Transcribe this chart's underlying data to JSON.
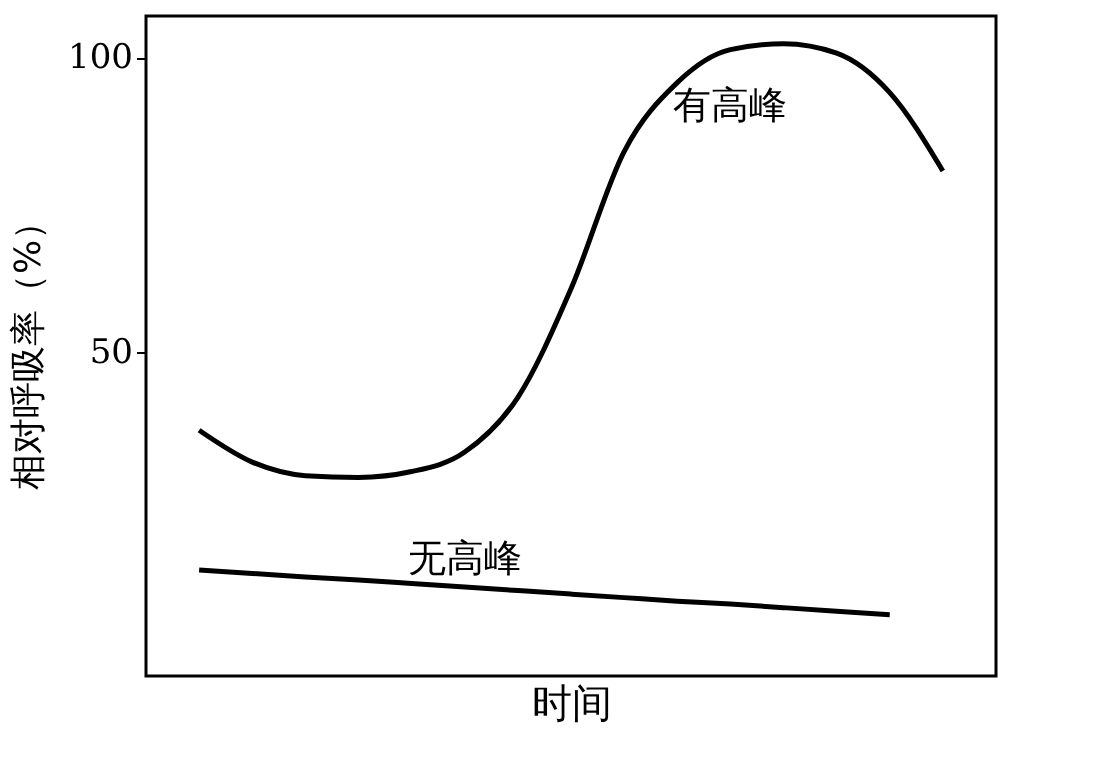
{
  "chart_data": {
    "type": "line",
    "xlabel": "时间",
    "ylabel": "相对呼吸率（%）",
    "categories": [
      null,
      null,
      null,
      null,
      null,
      null,
      null,
      null,
      null,
      null,
      null,
      null,
      null,
      null,
      null
    ],
    "series": [
      {
        "name": "有高峰",
        "color": "#000000",
        "values": [
          36.7,
          31.3,
          29,
          28.7,
          29.7,
          33,
          42.3,
          60.7,
          84,
          95.7,
          101.3,
          102.3,
          100.7,
          94,
          80.7
        ]
      },
      {
        "name": "无高峰",
        "color": "#000000",
        "values": [
          13,
          12.4,
          11.8,
          11.3,
          10.7,
          10.1,
          9.5,
          8.9,
          8.3,
          7.7,
          7.2,
          6.6,
          6.0,
          5.4,
          null
        ]
      }
    ],
    "ylim": [
      -5,
      107
    ],
    "yticks": [
      50,
      100
    ],
    "tick_labels": "y",
    "grid": false,
    "marker": "none",
    "line_style": "solid"
  }
}
